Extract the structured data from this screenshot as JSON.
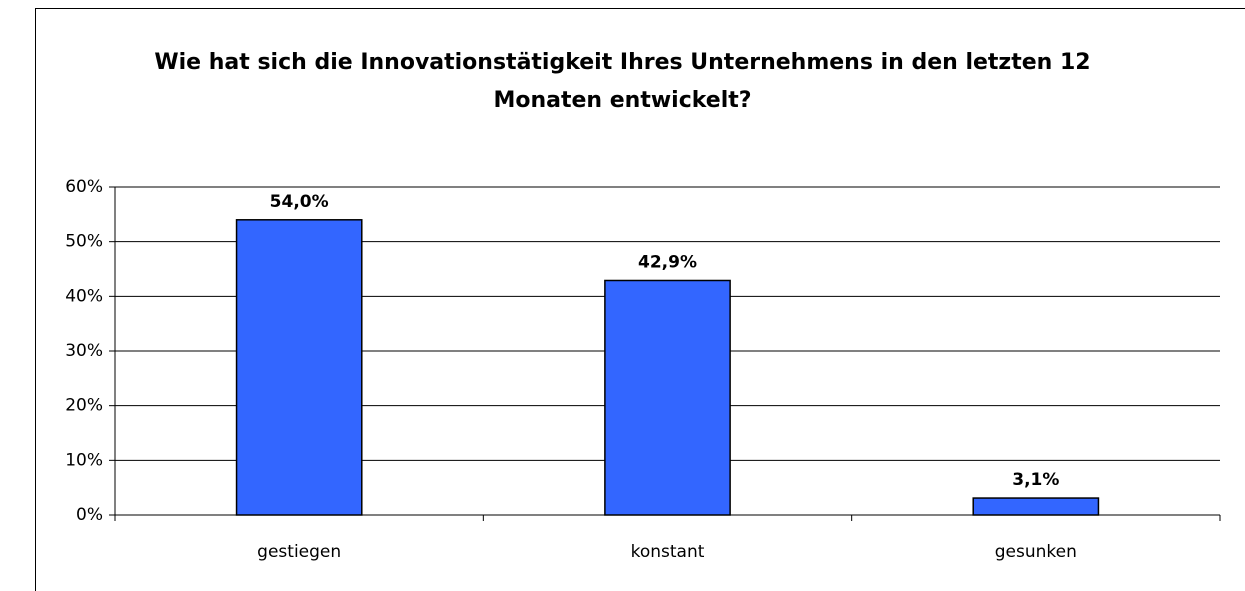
{
  "chart_data": {
    "type": "bar",
    "title": "Wie hat sich die Innovationstätigkeit Ihres Unternehmens in den letzten 12 Monaten entwickelt?",
    "categories": [
      "gestiegen",
      "konstant",
      "gesunken"
    ],
    "values": [
      54.0,
      42.9,
      3.1
    ],
    "value_labels": [
      "54,0%",
      "42,9%",
      "3,1%"
    ],
    "color": "#3366ff",
    "ylim": [
      0,
      60
    ],
    "yticks": [
      {
        "value": 0,
        "label": "0%"
      },
      {
        "value": 10,
        "label": "10%"
      },
      {
        "value": 20,
        "label": "20%"
      },
      {
        "value": 30,
        "label": "30%"
      },
      {
        "value": 40,
        "label": "40%"
      },
      {
        "value": 50,
        "label": "50%"
      },
      {
        "value": 60,
        "label": "60%"
      }
    ],
    "grid": true
  }
}
